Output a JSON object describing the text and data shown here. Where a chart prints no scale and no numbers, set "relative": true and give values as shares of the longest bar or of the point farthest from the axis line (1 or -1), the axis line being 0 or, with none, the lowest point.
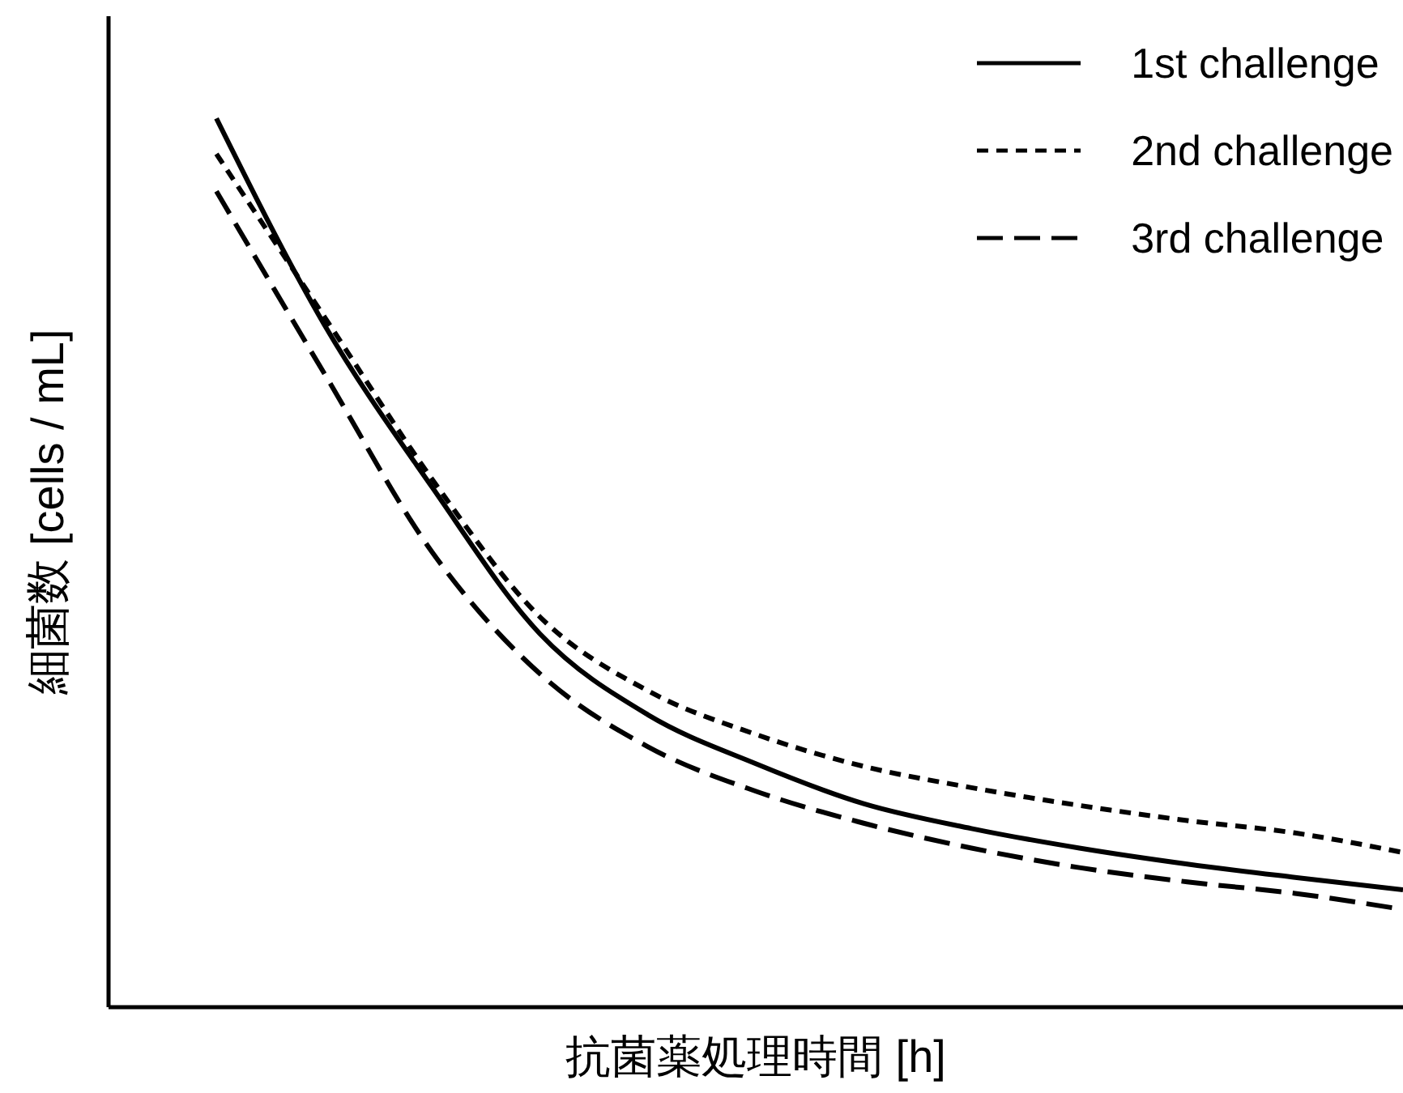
{
  "chart_data": {
    "type": "line",
    "relative": true,
    "xlabel": "抗菌薬処理時間 [h]",
    "ylabel": "細菌数 [cells / mL]",
    "categories": [
      null,
      null,
      null,
      null,
      null,
      null,
      null,
      null,
      null,
      null,
      null,
      null,
      null
    ],
    "legend": "top right",
    "marker": "none",
    "series": [
      {
        "name": "1st challenge",
        "color": "#000000",
        "line_style": "solid",
        "values": [
          null,
          1.0,
          0.768,
          0.585,
          0.42,
          0.329,
          0.274,
          0.229,
          0.201,
          0.179,
          0.161,
          0.146,
          0.132
        ]
      },
      {
        "name": "2nd challenge",
        "color": "#000000",
        "line_style": "dotted",
        "values": [
          null,
          0.96,
          0.777,
          0.594,
          0.439,
          0.356,
          0.307,
          0.271,
          0.247,
          0.227,
          0.21,
          0.196,
          0.174
        ]
      },
      {
        "name": "3rd challenge",
        "color": "#000000",
        "line_style": "dashed",
        "values": [
          null,
          0.918,
          0.713,
          0.512,
          0.375,
          0.293,
          0.243,
          0.207,
          0.179,
          0.157,
          0.141,
          0.128,
          0.11
        ]
      }
    ]
  }
}
